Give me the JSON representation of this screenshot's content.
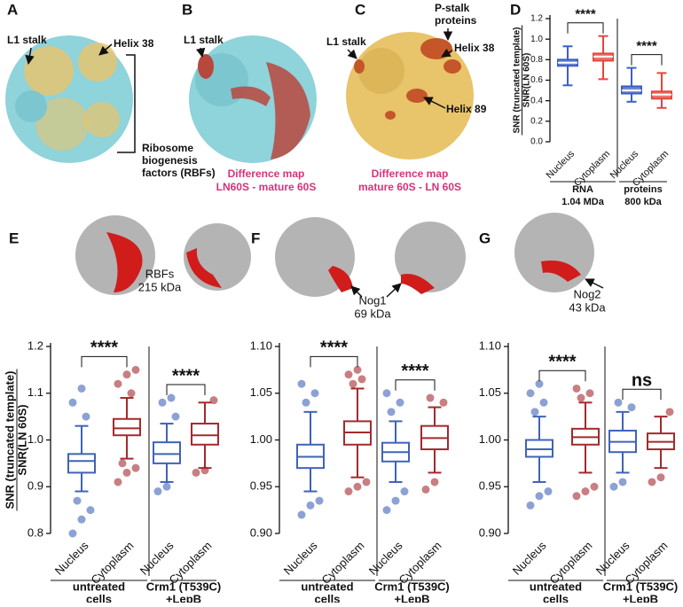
{
  "panels": [
    {
      "letter": "A",
      "labels": [
        "L1 stalk",
        "Helix 38"
      ],
      "caption": [
        "Ribosome",
        "biogenesis",
        "factors (RBFs)"
      ]
    },
    {
      "letter": "B",
      "labels": [
        "L1 stalk"
      ],
      "caption": [
        "Difference map",
        "LN60S - mature 60S"
      ]
    },
    {
      "letter": "C",
      "labels": [
        "P-stalk",
        "proteins",
        "L1 stalk",
        "Helix 38",
        "Helix 89"
      ],
      "caption": [
        "Difference map",
        "mature 60S - LN 60S"
      ]
    }
  ],
  "chart_data": [
    {
      "type": "box",
      "panel": "D",
      "ylabel": [
        "SNR (truncated template)",
        "SNR(LN 60S)"
      ],
      "ylim": [
        0,
        1.2
      ],
      "yticks": [
        {
          "value": 0,
          "label": "0.0"
        },
        {
          "value": 0.2,
          "label": "0.2"
        },
        {
          "value": 0.4,
          "label": "0.4"
        },
        {
          "value": 0.6,
          "label": "0.6"
        },
        {
          "value": 0.8,
          "label": "0.8"
        },
        {
          "value": 1,
          "label": "1.0"
        },
        {
          "value": 1.2,
          "label": "1.2"
        }
      ],
      "categories": [
        "Nucleus",
        "Cytoplasm",
        "Nucleus",
        "Cytoplasm"
      ],
      "group_labels": [
        [
          "RNA",
          "1.04 MDa"
        ],
        [
          "proteins",
          "800 kDa"
        ]
      ],
      "significance": [
        "****",
        "****"
      ],
      "boxes": [
        {
          "color": "#3d5fc4",
          "whisker_low": 0.55,
          "q1": 0.74,
          "median": 0.77,
          "q3": 0.8,
          "whisker_high": 0.93
        },
        {
          "color": "#e8453c",
          "whisker_low": 0.61,
          "q1": 0.79,
          "median": 0.83,
          "q3": 0.86,
          "whisker_high": 1.03
        },
        {
          "color": "#3d5fc4",
          "whisker_low": 0.39,
          "q1": 0.47,
          "median": 0.5,
          "q3": 0.54,
          "whisker_high": 0.72
        },
        {
          "color": "#e8453c",
          "whisker_low": 0.33,
          "q1": 0.42,
          "median": 0.46,
          "q3": 0.49,
          "whisker_high": 0.67
        }
      ]
    },
    {
      "type": "box",
      "panel": "E",
      "annotation": [
        "RBFs",
        "215 kDa"
      ],
      "ylabel": [
        "SNR (truncated template)",
        "SNR(LN 60S)"
      ],
      "ylim": [
        0.8,
        1.2
      ],
      "yticks": [
        0.8,
        0.9,
        {
          "value": 1,
          "label": "1.0"
        },
        1.1,
        1.2
      ],
      "categories": [
        "Nucleus",
        "Cytoplasm",
        "Nucleus",
        "Cytoplasm"
      ],
      "group_labels": [
        [
          "untreated",
          "cells"
        ],
        [
          "Crm1 (T539C)",
          "+LepB"
        ]
      ],
      "significance": [
        "****",
        "****"
      ],
      "boxes": [
        {
          "color": "#3f63b8",
          "whisker_low": 0.89,
          "q1": 0.93,
          "median": 0.955,
          "q3": 0.97,
          "whisker_high": 1.03,
          "outliers": [
            0.8,
            0.83,
            0.85,
            0.87,
            1.05,
            1.08,
            1.11
          ]
        },
        {
          "color": "#a32a2e",
          "whisker_low": 0.96,
          "q1": 1.01,
          "median": 1.025,
          "q3": 1.045,
          "whisker_high": 1.09,
          "outliers": [
            0.91,
            0.93,
            0.94,
            0.95,
            1.1,
            1.12,
            1.14,
            1.15
          ]
        },
        {
          "color": "#3f63b8",
          "whisker_low": 0.91,
          "q1": 0.95,
          "median": 0.97,
          "q3": 0.995,
          "whisker_high": 1.035,
          "outliers": [
            0.89,
            0.9,
            1.05,
            1.08,
            1.09
          ]
        },
        {
          "color": "#a32a2e",
          "whisker_low": 0.94,
          "q1": 0.99,
          "median": 1.01,
          "q3": 1.035,
          "whisker_high": 1.08,
          "outliers": [
            0.93,
            0.935,
            1.085
          ]
        }
      ]
    },
    {
      "type": "box",
      "panel": "F",
      "annotation": [
        "Nog1",
        "69 kDa"
      ],
      "ylim": [
        0.9,
        1.1
      ],
      "yticks": [
        {
          "value": 0.9,
          "label": "0.90"
        },
        0.95,
        {
          "value": 1,
          "label": "1.00"
        },
        1.05,
        {
          "value": 1.1,
          "label": "1.10"
        }
      ],
      "categories": [
        "Nucleus",
        "Cytoplasm",
        "Nucleus",
        "Cytoplasm"
      ],
      "group_labels": [
        [
          "untreated",
          "cells"
        ],
        [
          "Crm1 (T539C)",
          "+LepB"
        ]
      ],
      "significance": [
        "****",
        "****"
      ],
      "boxes": [
        {
          "color": "#3f63b8",
          "whisker_low": 0.945,
          "q1": 0.97,
          "median": 0.982,
          "q3": 0.995,
          "whisker_high": 1.03,
          "outliers": [
            0.92,
            0.93,
            0.935,
            1.04,
            1.05,
            1.06
          ]
        },
        {
          "color": "#a32a2e",
          "whisker_low": 0.96,
          "q1": 0.995,
          "median": 1.008,
          "q3": 1.02,
          "whisker_high": 1.055,
          "outliers": [
            0.945,
            0.95,
            0.955,
            1.06,
            1.065,
            1.07,
            1.075
          ]
        },
        {
          "color": "#3f63b8",
          "whisker_low": 0.955,
          "q1": 0.977,
          "median": 0.987,
          "q3": 0.997,
          "whisker_high": 1.02,
          "outliers": [
            0.925,
            0.935,
            0.945,
            1.03,
            1.04,
            1.05
          ]
        },
        {
          "color": "#a32a2e",
          "whisker_low": 0.965,
          "q1": 0.99,
          "median": 1.002,
          "q3": 1.015,
          "whisker_high": 1.035,
          "outliers": [
            0.947,
            0.955,
            1.04,
            1.045
          ]
        }
      ]
    },
    {
      "type": "box",
      "panel": "G",
      "annotation": [
        "Nog2",
        "43 kDa"
      ],
      "ylim": [
        0.9,
        1.1
      ],
      "yticks": [
        {
          "value": 0.9,
          "label": "0.90"
        },
        0.95,
        {
          "value": 1,
          "label": "1.00"
        },
        1.05,
        {
          "value": 1.1,
          "label": "1.10"
        }
      ],
      "categories": [
        "Nucleus",
        "Cytoplasm",
        "Nucleus",
        "Cytoplasm"
      ],
      "group_labels": [
        [
          "untreated",
          "cells"
        ],
        [
          "Crm1 (T539C)",
          "+LepB"
        ]
      ],
      "significance": [
        "****",
        "ns"
      ],
      "boxes": [
        {
          "color": "#3f63b8",
          "whisker_low": 0.955,
          "q1": 0.982,
          "median": 0.99,
          "q3": 1.0,
          "whisker_high": 1.025,
          "outliers": [
            0.93,
            0.94,
            0.945,
            1.03,
            1.04,
            1.05,
            1.06
          ]
        },
        {
          "color": "#a32a2e",
          "whisker_low": 0.965,
          "q1": 0.995,
          "median": 1.003,
          "q3": 1.012,
          "whisker_high": 1.04,
          "outliers": [
            0.94,
            0.945,
            0.95,
            1.045,
            1.05,
            1.055
          ]
        },
        {
          "color": "#3f63b8",
          "whisker_low": 0.965,
          "q1": 0.987,
          "median": 0.998,
          "q3": 1.01,
          "whisker_high": 1.03,
          "outliers": [
            0.95,
            0.955,
            1.035,
            1.04
          ]
        },
        {
          "color": "#a32a2e",
          "whisker_low": 0.97,
          "q1": 0.99,
          "median": 0.998,
          "q3": 1.007,
          "whisker_high": 1.025,
          "outliers": [
            0.955,
            0.96,
            1.03
          ]
        }
      ]
    }
  ]
}
